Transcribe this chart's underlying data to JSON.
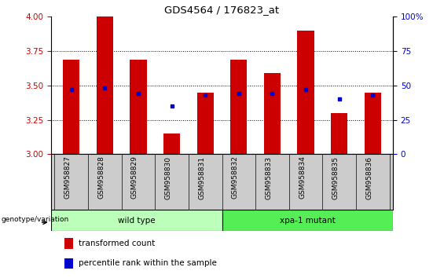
{
  "title": "GDS4564 / 176823_at",
  "categories": [
    "GSM958827",
    "GSM958828",
    "GSM958829",
    "GSM958830",
    "GSM958831",
    "GSM958832",
    "GSM958833",
    "GSM958834",
    "GSM958835",
    "GSM958836"
  ],
  "bar_tops": [
    3.69,
    4.0,
    3.69,
    3.15,
    3.45,
    3.69,
    3.59,
    3.9,
    3.3,
    3.45
  ],
  "bar_base": 3.0,
  "blue_dots": [
    3.47,
    3.48,
    3.44,
    3.35,
    3.43,
    3.44,
    3.44,
    3.47,
    3.4,
    3.43
  ],
  "ylim": [
    3.0,
    4.0
  ],
  "yticks_left": [
    3.0,
    3.25,
    3.5,
    3.75,
    4.0
  ],
  "yticks_right": [
    0,
    25,
    50,
    75,
    100
  ],
  "bar_color": "#CC0000",
  "dot_color": "#0000CC",
  "tick_color_left": "#CC0000",
  "tick_color_right": "#0000CC",
  "wild_type_label": "wild type",
  "xpa_mutant_label": "xpa-1 mutant",
  "wild_type_color": "#bbffbb",
  "xpa_mutant_color": "#55ee55",
  "genotype_label": "genotype/variation",
  "legend_bar_label": "transformed count",
  "legend_dot_label": "percentile rank within the sample",
  "bar_width": 0.5,
  "bg_color": "#ffffff",
  "tick_label_area_color": "#cccccc",
  "border_color": "#000000",
  "n_wild": 5,
  "n_xpa": 5
}
